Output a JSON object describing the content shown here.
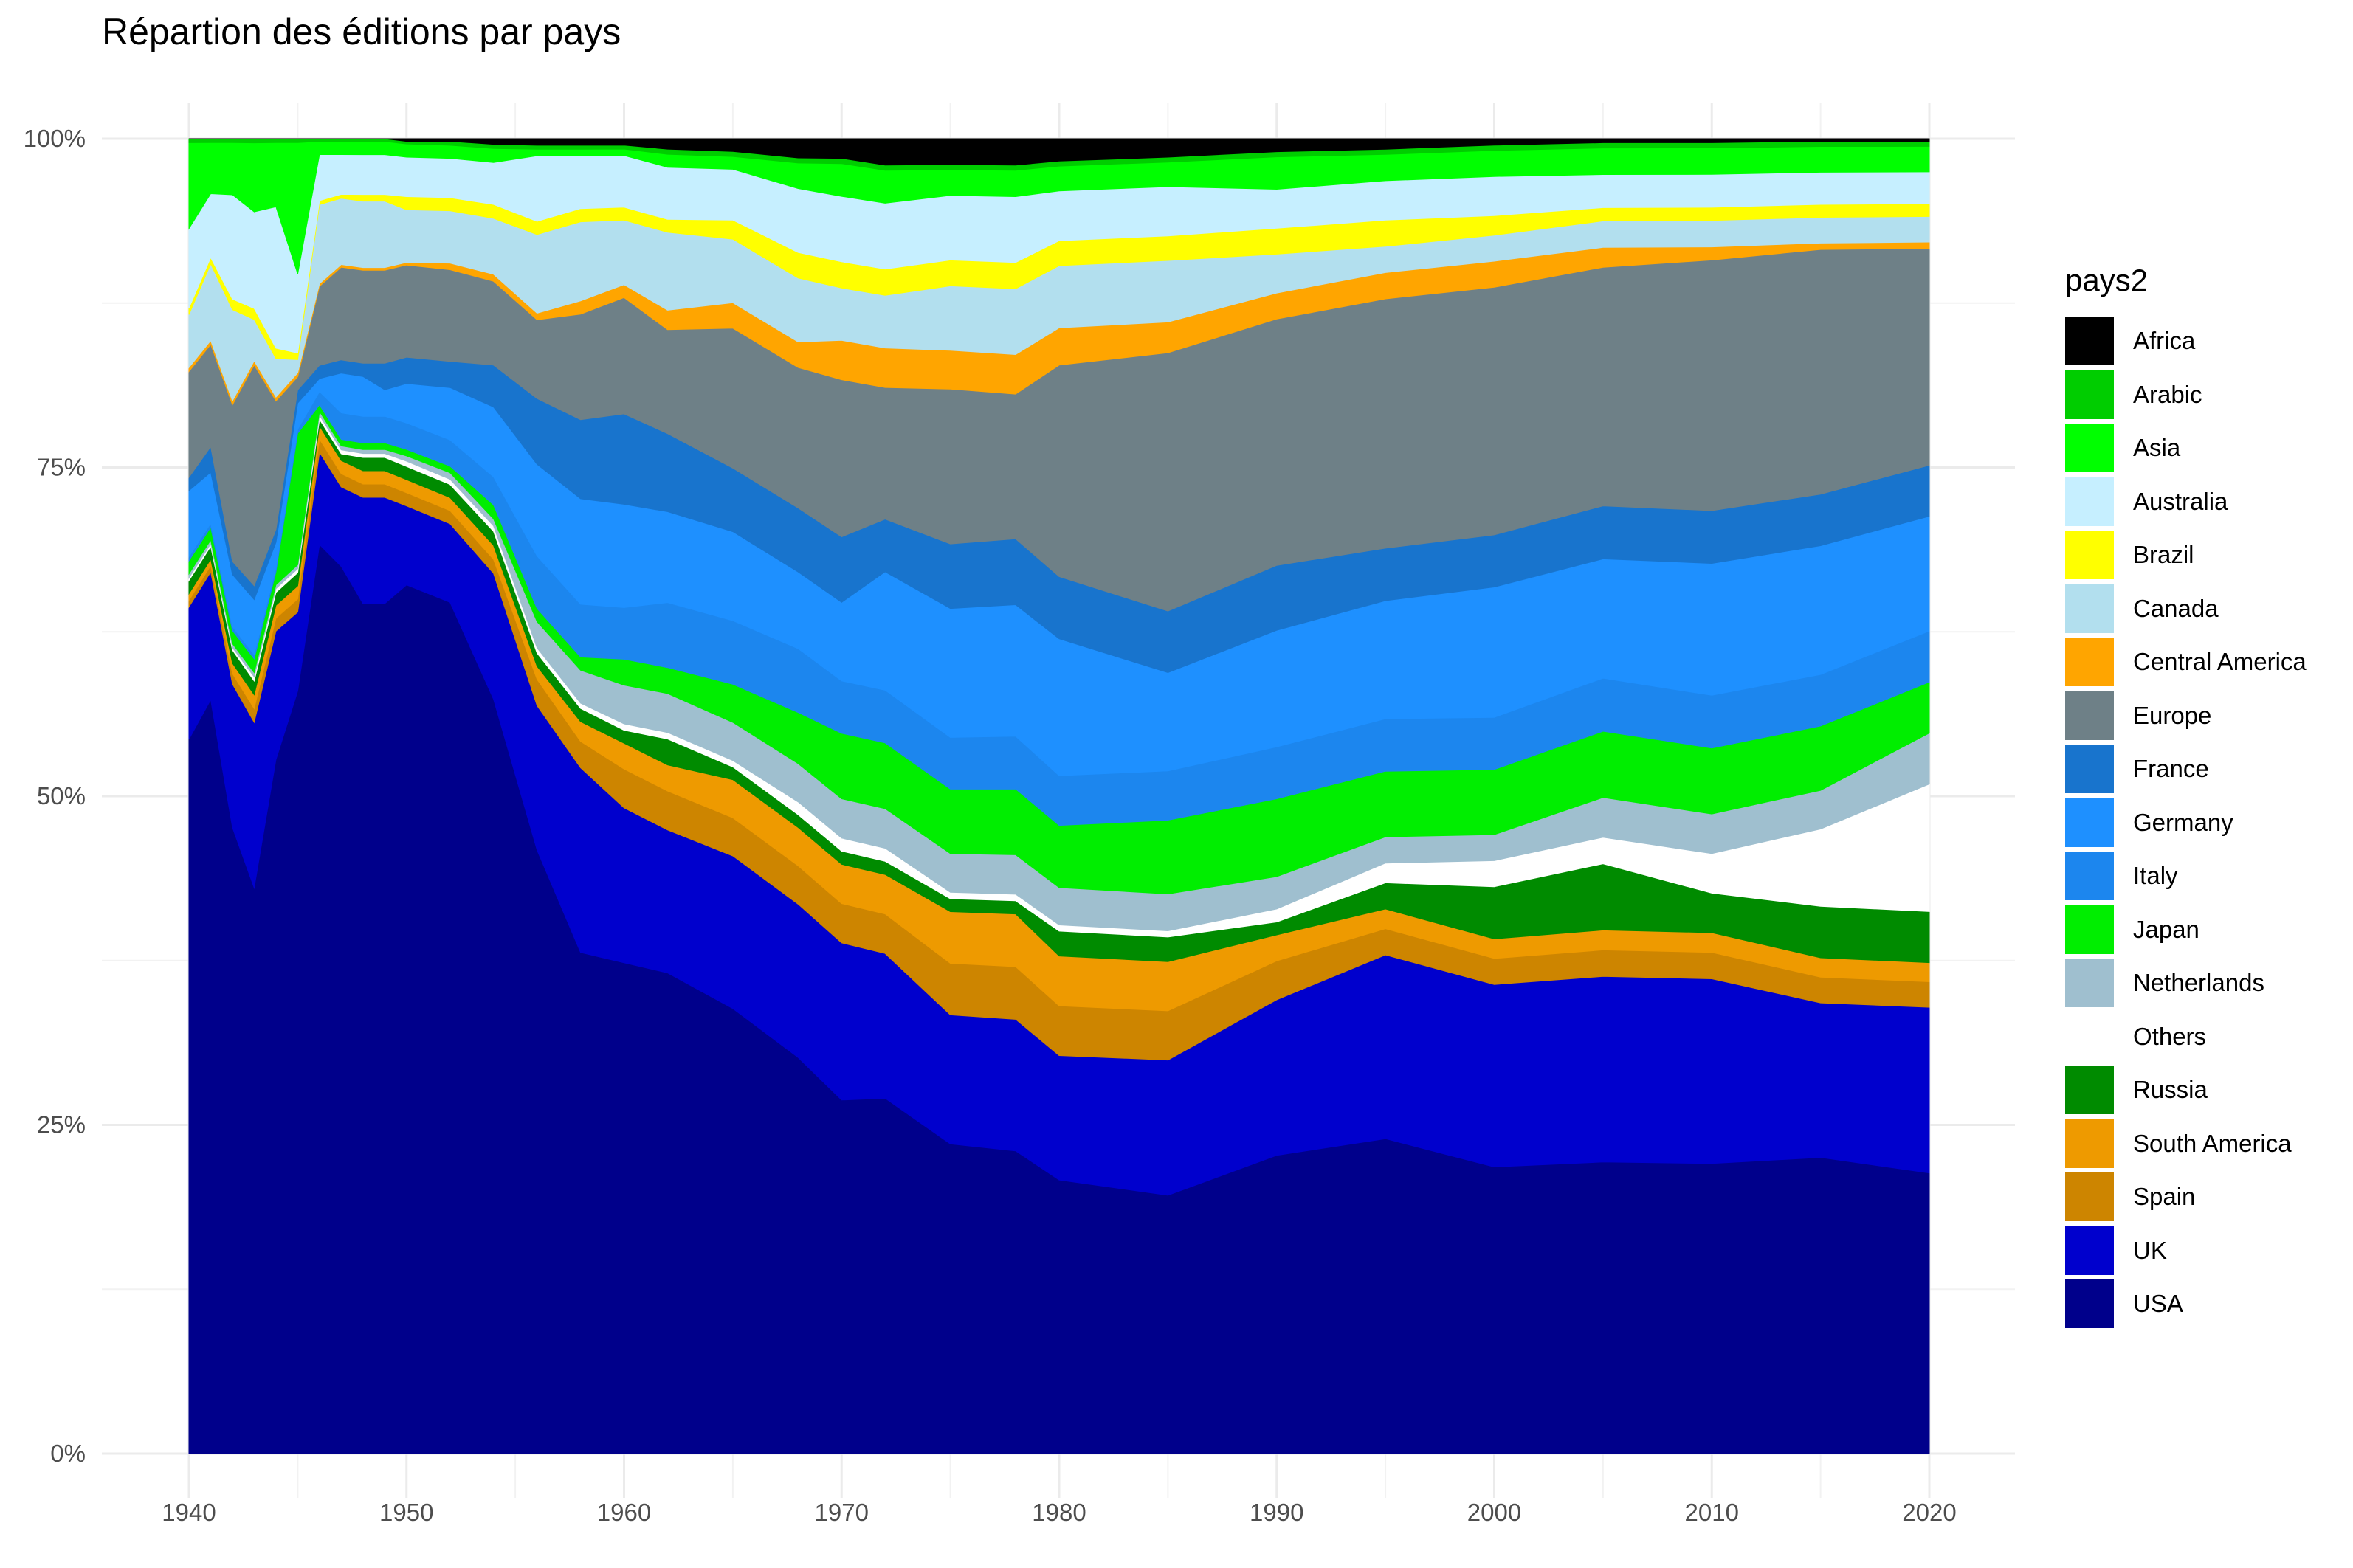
{
  "chart_data": {
    "type": "area",
    "stacking": "percent",
    "title": "Répartion des éditions par pays",
    "xlabel": "",
    "ylabel": "",
    "xlim": [
      1940,
      2020
    ],
    "ylim": [
      0,
      1
    ],
    "x_ticks": [
      1940,
      1950,
      1960,
      1970,
      1980,
      1990,
      2000,
      2010,
      2020
    ],
    "y_ticks": [
      "0%",
      "25%",
      "50%",
      "75%",
      "100%"
    ],
    "grid": true,
    "legend_title": "pays2",
    "legend_position": "right",
    "x": [
      1940,
      1941,
      1942,
      1943,
      1944,
      1945,
      1946,
      1947,
      1948,
      1949,
      1950,
      1952,
      1954,
      1956,
      1958,
      1960,
      1962,
      1965,
      1968,
      1970,
      1972,
      1975,
      1978,
      1980,
      1985,
      1990,
      1995,
      2000,
      2005,
      2010,
      2015,
      2020
    ],
    "series": [
      {
        "name": "USA",
        "color": "#00008b",
        "values": [
          0.54,
          0.59,
          0.48,
          0.41,
          0.54,
          0.58,
          0.69,
          0.67,
          0.64,
          0.64,
          0.66,
          0.65,
          0.54,
          0.46,
          0.38,
          0.38,
          0.37,
          0.35,
          0.31,
          0.27,
          0.27,
          0.24,
          0.23,
          0.22,
          0.21,
          0.23,
          0.24,
          0.22,
          0.22,
          0.22,
          0.23,
          0.22
        ]
      },
      {
        "name": "UK",
        "color": "#0000cd",
        "values": [
          0.1,
          0.1,
          0.11,
          0.12,
          0.1,
          0.06,
          0.07,
          0.06,
          0.08,
          0.08,
          0.06,
          0.06,
          0.09,
          0.11,
          0.14,
          0.12,
          0.11,
          0.12,
          0.12,
          0.12,
          0.11,
          0.1,
          0.1,
          0.1,
          0.11,
          0.12,
          0.14,
          0.14,
          0.14,
          0.14,
          0.12,
          0.13
        ]
      },
      {
        "name": "Spain",
        "color": "#cd8500",
        "values": [
          0.005,
          0.005,
          0.008,
          0.01,
          0.01,
          0.01,
          0.01,
          0.01,
          0.01,
          0.01,
          0.01,
          0.01,
          0.01,
          0.02,
          0.02,
          0.03,
          0.03,
          0.03,
          0.03,
          0.03,
          0.03,
          0.04,
          0.04,
          0.04,
          0.04,
          0.03,
          0.02,
          0.02,
          0.02,
          0.02,
          0.02,
          0.02
        ]
      },
      {
        "name": "South America",
        "color": "#ee9a00",
        "values": [
          0.005,
          0.005,
          0.008,
          0.01,
          0.01,
          0.01,
          0.01,
          0.01,
          0.01,
          0.01,
          0.01,
          0.01,
          0.01,
          0.01,
          0.015,
          0.02,
          0.02,
          0.03,
          0.03,
          0.03,
          0.03,
          0.04,
          0.04,
          0.04,
          0.04,
          0.02,
          0.015,
          0.015,
          0.015,
          0.015,
          0.015,
          0.015
        ]
      },
      {
        "name": "Russia",
        "color": "#008b00",
        "values": [
          0.01,
          0.01,
          0.01,
          0.01,
          0.01,
          0.01,
          0.005,
          0.005,
          0.01,
          0.01,
          0.01,
          0.01,
          0.01,
          0.01,
          0.01,
          0.01,
          0.02,
          0.01,
          0.01,
          0.01,
          0.01,
          0.01,
          0.01,
          0.02,
          0.02,
          0.01,
          0.02,
          0.04,
          0.05,
          0.03,
          0.04,
          0.04
        ]
      },
      {
        "name": "Others",
        "color": "#ffffff",
        "values": [
          0.002,
          0.002,
          0.002,
          0.003,
          0.003,
          0.003,
          0.003,
          0.003,
          0.003,
          0.003,
          0.004,
          0.004,
          0.004,
          0.004,
          0.004,
          0.005,
          0.005,
          0.005,
          0.01,
          0.01,
          0.01,
          0.005,
          0.005,
          0.005,
          0.005,
          0.01,
          0.015,
          0.02,
          0.02,
          0.03,
          0.06,
          0.1
        ]
      },
      {
        "name": "Netherlands",
        "color": "#9fbfcf",
        "values": [
          0.003,
          0.003,
          0.003,
          0.003,
          0.003,
          0.003,
          0.003,
          0.003,
          0.003,
          0.003,
          0.004,
          0.005,
          0.005,
          0.02,
          0.025,
          0.03,
          0.03,
          0.03,
          0.03,
          0.03,
          0.03,
          0.03,
          0.03,
          0.03,
          0.03,
          0.025,
          0.02,
          0.02,
          0.03,
          0.03,
          0.03,
          0.04
        ]
      },
      {
        "name": "Japan",
        "color": "#00ee00",
        "values": [
          0.01,
          0.01,
          0.01,
          0.01,
          0.01,
          0.1,
          0.005,
          0.005,
          0.005,
          0.005,
          0.005,
          0.005,
          0.01,
          0.01,
          0.01,
          0.02,
          0.02,
          0.03,
          0.04,
          0.05,
          0.05,
          0.05,
          0.05,
          0.05,
          0.06,
          0.06,
          0.05,
          0.05,
          0.05,
          0.05,
          0.05,
          0.04
        ]
      },
      {
        "name": "Italy",
        "color": "#1c86ee",
        "values": [
          0.003,
          0.003,
          0.003,
          0.003,
          0.003,
          0.003,
          0.01,
          0.02,
          0.02,
          0.02,
          0.02,
          0.02,
          0.02,
          0.04,
          0.04,
          0.04,
          0.05,
          0.05,
          0.05,
          0.04,
          0.04,
          0.04,
          0.04,
          0.04,
          0.04,
          0.04,
          0.04,
          0.04,
          0.04,
          0.04,
          0.04,
          0.04
        ]
      },
      {
        "name": "Germany",
        "color": "#1e90ff",
        "values": [
          0.05,
          0.04,
          0.04,
          0.04,
          0.02,
          0.02,
          0.01,
          0.03,
          0.03,
          0.02,
          0.03,
          0.04,
          0.05,
          0.07,
          0.08,
          0.08,
          0.07,
          0.07,
          0.06,
          0.06,
          0.09,
          0.1,
          0.1,
          0.11,
          0.08,
          0.09,
          0.09,
          0.1,
          0.09,
          0.1,
          0.1,
          0.09
        ]
      },
      {
        "name": "France",
        "color": "#1874cd",
        "values": [
          0.01,
          0.02,
          0.01,
          0.01,
          0.01,
          0.01,
          0.01,
          0.01,
          0.01,
          0.02,
          0.02,
          0.02,
          0.03,
          0.05,
          0.06,
          0.07,
          0.06,
          0.05,
          0.05,
          0.05,
          0.04,
          0.05,
          0.05,
          0.05,
          0.05,
          0.05,
          0.04,
          0.04,
          0.04,
          0.04,
          0.04,
          0.04
        ]
      },
      {
        "name": "Europe",
        "color": "#6e8087",
        "values": [
          0.08,
          0.08,
          0.12,
          0.16,
          0.1,
          0.01,
          0.06,
          0.07,
          0.07,
          0.07,
          0.07,
          0.07,
          0.06,
          0.06,
          0.08,
          0.09,
          0.08,
          0.11,
          0.11,
          0.12,
          0.1,
          0.12,
          0.11,
          0.17,
          0.21,
          0.19,
          0.19,
          0.19,
          0.18,
          0.19,
          0.19,
          0.17
        ]
      },
      {
        "name": "Central America",
        "color": "#ffa500",
        "values": [
          0.003,
          0.003,
          0.003,
          0.003,
          0.003,
          0.003,
          0.002,
          0.002,
          0.002,
          0.002,
          0.002,
          0.005,
          0.005,
          0.005,
          0.01,
          0.01,
          0.015,
          0.02,
          0.02,
          0.03,
          0.03,
          0.03,
          0.03,
          0.03,
          0.025,
          0.02,
          0.02,
          0.02,
          0.015,
          0.01,
          0.005,
          0.005
        ]
      },
      {
        "name": "Canada",
        "color": "#b2dfee",
        "values": [
          0.04,
          0.06,
          0.07,
          0.03,
          0.03,
          0.01,
          0.06,
          0.05,
          0.05,
          0.05,
          0.04,
          0.04,
          0.04,
          0.06,
          0.06,
          0.05,
          0.06,
          0.05,
          0.05,
          0.04,
          0.04,
          0.05,
          0.05,
          0.05,
          0.05,
          0.03,
          0.02,
          0.02,
          0.02,
          0.02,
          0.02,
          0.02
        ]
      },
      {
        "name": "Brazil",
        "color": "#ffff00",
        "values": [
          0.005,
          0.005,
          0.008,
          0.008,
          0.008,
          0.005,
          0.003,
          0.003,
          0.005,
          0.005,
          0.01,
          0.01,
          0.01,
          0.01,
          0.01,
          0.01,
          0.01,
          0.015,
          0.02,
          0.02,
          0.02,
          0.02,
          0.02,
          0.02,
          0.02,
          0.02,
          0.02,
          0.015,
          0.01,
          0.01,
          0.01,
          0.01
        ]
      },
      {
        "name": "Australia",
        "color": "#c6efff",
        "values": [
          0.06,
          0.05,
          0.08,
          0.07,
          0.11,
          0.06,
          0.035,
          0.03,
          0.03,
          0.03,
          0.03,
          0.03,
          0.03,
          0.05,
          0.04,
          0.04,
          0.04,
          0.04,
          0.05,
          0.05,
          0.05,
          0.05,
          0.05,
          0.04,
          0.04,
          0.03,
          0.03,
          0.03,
          0.025,
          0.025,
          0.025,
          0.025
        ]
      },
      {
        "name": "Asia",
        "color": "#00ff00",
        "values": [
          0.065,
          0.04,
          0.04,
          0.05,
          0.05,
          0.1,
          0.01,
          0.01,
          0.01,
          0.01,
          0.01,
          0.01,
          0.01,
          0.005,
          0.005,
          0.005,
          0.01,
          0.01,
          0.02,
          0.025,
          0.025,
          0.02,
          0.02,
          0.02,
          0.02,
          0.025,
          0.02,
          0.02,
          0.02,
          0.02,
          0.02,
          0.02
        ]
      },
      {
        "name": "Arabic",
        "color": "#00cd00",
        "values": [
          0.003,
          0.003,
          0.003,
          0.003,
          0.003,
          0.003,
          0.002,
          0.002,
          0.002,
          0.002,
          0.002,
          0.003,
          0.003,
          0.003,
          0.003,
          0.003,
          0.004,
          0.004,
          0.004,
          0.004,
          0.004,
          0.004,
          0.004,
          0.004,
          0.004,
          0.004,
          0.004,
          0.004,
          0.004,
          0.004,
          0.004,
          0.004
        ]
      },
      {
        "name": "Africa",
        "color": "#000000",
        "values": [
          0.0,
          0.0,
          0.0,
          0.0,
          0.0,
          0.0,
          0.0,
          0.0,
          0.0,
          0.0,
          0.002,
          0.002,
          0.004,
          0.005,
          0.005,
          0.005,
          0.008,
          0.01,
          0.015,
          0.015,
          0.02,
          0.02,
          0.02,
          0.018,
          0.015,
          0.01,
          0.008,
          0.005,
          0.003,
          0.003,
          0.002,
          0.002
        ]
      }
    ]
  }
}
